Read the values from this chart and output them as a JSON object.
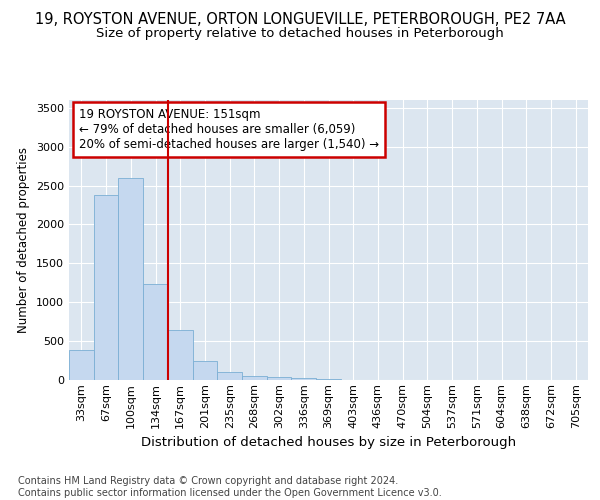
{
  "title1": "19, ROYSTON AVENUE, ORTON LONGUEVILLE, PETERBOROUGH, PE2 7AA",
  "title2": "Size of property relative to detached houses in Peterborough",
  "xlabel": "Distribution of detached houses by size in Peterborough",
  "ylabel": "Number of detached properties",
  "categories": [
    "33sqm",
    "67sqm",
    "100sqm",
    "134sqm",
    "167sqm",
    "201sqm",
    "235sqm",
    "268sqm",
    "302sqm",
    "336sqm",
    "369sqm",
    "403sqm",
    "436sqm",
    "470sqm",
    "504sqm",
    "537sqm",
    "571sqm",
    "604sqm",
    "638sqm",
    "672sqm",
    "705sqm"
  ],
  "values": [
    390,
    2380,
    2600,
    1230,
    640,
    250,
    100,
    55,
    40,
    20,
    10,
    5,
    0,
    0,
    0,
    0,
    0,
    0,
    0,
    0,
    0
  ],
  "bar_color": "#c5d8ef",
  "bar_edge_color": "#7bafd4",
  "ylim": [
    0,
    3600
  ],
  "yticks": [
    0,
    500,
    1000,
    1500,
    2000,
    2500,
    3000,
    3500
  ],
  "red_line_x": 3.5,
  "annotation_text": "19 ROYSTON AVENUE: 151sqm\n← 79% of detached houses are smaller (6,059)\n20% of semi-detached houses are larger (1,540) →",
  "footer": "Contains HM Land Registry data © Crown copyright and database right 2024.\nContains public sector information licensed under the Open Government Licence v3.0.",
  "bg_color": "#ffffff",
  "plot_bg_color": "#dce6f0",
  "grid_color": "#ffffff",
  "box_color": "#cc0000",
  "title1_fontsize": 10.5,
  "title2_fontsize": 9.5,
  "ylabel_fontsize": 8.5,
  "xlabel_fontsize": 9.5,
  "tick_fontsize": 8,
  "annot_fontsize": 8.5,
  "footer_fontsize": 7
}
